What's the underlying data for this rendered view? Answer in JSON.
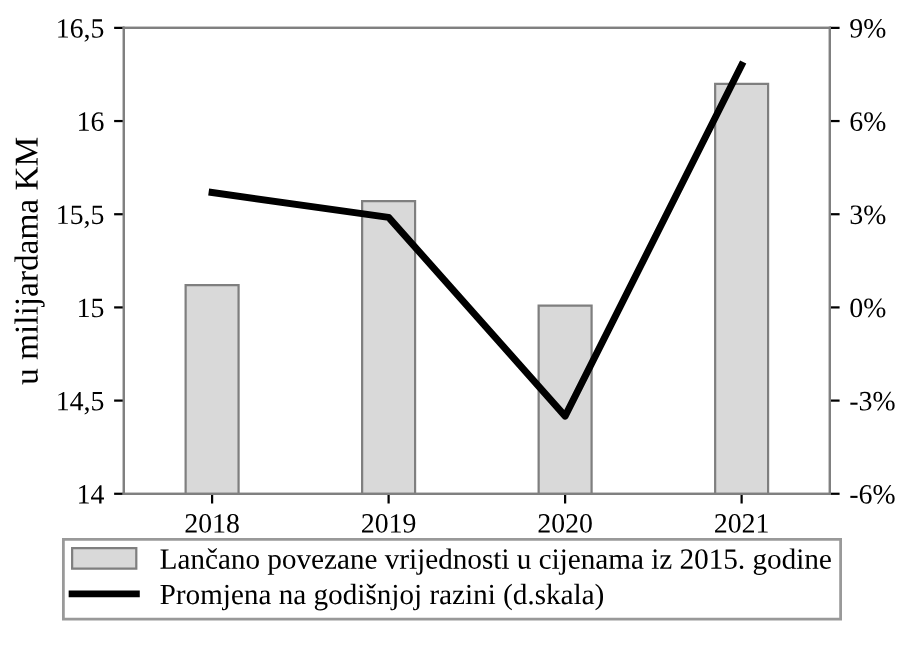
{
  "chart_data": {
    "type": "bar",
    "ylabel": "u milijardama KM",
    "categories": [
      "2018",
      "2019",
      "2020",
      "2021"
    ],
    "series": [
      {
        "name": "Lančano povezane vrijednosti u cijenama iz 2015. godine",
        "color": "#d9d9d9",
        "values": [
          15.12,
          15.57,
          15.01,
          16.2
        ]
      },
      {
        "name": "Promjena na godišnjoj razini (d.skala)",
        "type": "line",
        "axis": "y2",
        "color": "#000000",
        "values": [
          3.7,
          2.9,
          -3.5,
          7.8
        ]
      }
    ],
    "ylim": [
      14,
      16.5
    ],
    "yticks": [
      {
        "value": 14,
        "label": "14"
      },
      {
        "value": 14.5,
        "label": "14,5"
      },
      {
        "value": 15,
        "label": "15"
      },
      {
        "value": 15.5,
        "label": "15,5"
      },
      {
        "value": 16,
        "label": "16"
      },
      {
        "value": 16.5,
        "label": "16,5"
      }
    ],
    "y2lim": [
      -6,
      9
    ],
    "y2ticks": [
      {
        "value": -6,
        "label": "-6%"
      },
      {
        "value": -3,
        "label": "-3%"
      },
      {
        "value": 0,
        "label": "0%"
      },
      {
        "value": 3,
        "label": "3%"
      },
      {
        "value": 6,
        "label": "6%"
      },
      {
        "value": 9,
        "label": "9%"
      }
    ],
    "grid": false,
    "legend": "bottom",
    "marker": "none",
    "line_style": "solid"
  }
}
